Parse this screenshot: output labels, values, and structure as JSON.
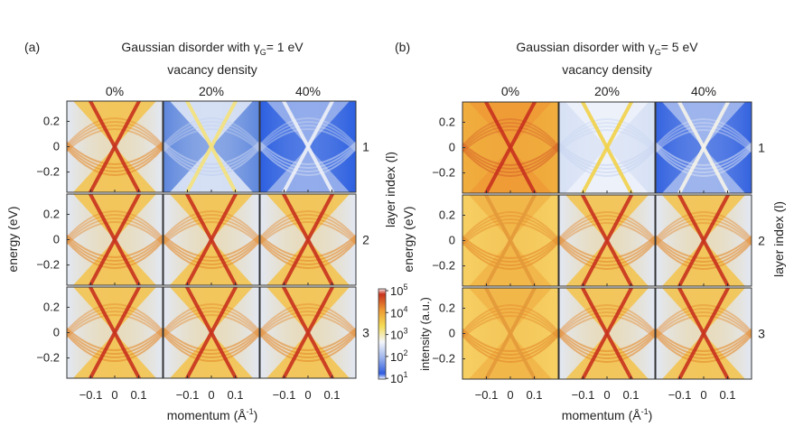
{
  "chart_data": [
    {
      "type": "heatmap",
      "panel_label": "(a)",
      "title_prefix": "Gaussian disorder with γ",
      "title_sub": "G",
      "title_suffix": "= 1 eV",
      "column_header": "vacancy density",
      "columns": [
        "0%",
        "20%",
        "40%"
      ],
      "rows": [
        "1",
        "2",
        "3"
      ],
      "row_axis_label": "layer index (l)",
      "xlabel": "momentum (Å",
      "xlabel_sup": "-1",
      "xlabel_end": ")",
      "ylabel": "energy (eV)",
      "xticks": [
        -0.1,
        0,
        0.1
      ],
      "xtick_labels": [
        "−0.1",
        "0",
        "0.1"
      ],
      "yticks": [
        0.2,
        0,
        -0.2
      ],
      "ytick_labels": [
        "0.2",
        "0",
        "−0.2"
      ],
      "xlim": [
        -0.2,
        0.2
      ],
      "ylim": [
        -0.36,
        0.36
      ],
      "panels": [
        [
          "warm",
          "pale-blue",
          "blue"
        ],
        [
          "warm",
          "warm",
          "warm"
        ],
        [
          "warm",
          "warm",
          "warm"
        ]
      ]
    },
    {
      "type": "heatmap",
      "panel_label": "(b)",
      "title_prefix": "Gaussian disorder with γ",
      "title_sub": "G",
      "title_suffix": "= 5 eV",
      "column_header": "vacancy density",
      "columns": [
        "0%",
        "20%",
        "40%"
      ],
      "rows": [
        "1",
        "2",
        "3"
      ],
      "row_axis_label": "layer index (l)",
      "xlabel": "momentum (Å",
      "xlabel_sup": "-1",
      "xlabel_end": ")",
      "ylabel": "energy (eV)",
      "xticks": [
        -0.1,
        0,
        0.1
      ],
      "xtick_labels": [
        "−0.1",
        "0",
        "0.1"
      ],
      "yticks": [
        0.2,
        0,
        -0.2
      ],
      "ytick_labels": [
        "0.2",
        "0",
        "−0.2"
      ],
      "xlim": [
        -0.2,
        0.2
      ],
      "ylim": [
        -0.36,
        0.36
      ],
      "panels": [
        [
          "orange",
          "pale-blue-yellow",
          "blue-white"
        ],
        [
          "diffuse",
          "warm",
          "warm"
        ],
        [
          "diffuse",
          "warm",
          "warm"
        ]
      ]
    }
  ],
  "colorbar": {
    "label": "intensity (a.u.)",
    "scale": "log",
    "tick_labels": [
      "10",
      "10",
      "10",
      "10",
      "10"
    ],
    "tick_exponents": [
      "5",
      "4",
      "3",
      "2",
      "1"
    ],
    "range": [
      10,
      100000
    ],
    "colors": [
      "#ffffff",
      "#2f5de0",
      "#9db4ec",
      "#f4f6fb",
      "#f4dc54",
      "#ee9a34",
      "#c8321e",
      "#f8e8e8"
    ]
  },
  "palettes": {
    "warm": {
      "side": "#e2e8f4",
      "cone": "#f3c24a",
      "line": "#c8321e",
      "arc": "#e58a2c"
    },
    "pale-blue": {
      "side": "#5d86dc",
      "cone": "#e3eaf7",
      "line": "#f5e27c",
      "arc": "#c3d1f0"
    },
    "blue": {
      "side": "#2c5fe0",
      "cone": "#9fb5ec",
      "line": "#eef1f8",
      "arc": "#c8d5f2"
    },
    "orange": {
      "side": "#f0ae3e",
      "cone": "#ee9a36",
      "line": "#c8321e",
      "arc": "#d8662a"
    },
    "diffuse": {
      "side": "#f6d064",
      "cone": "#f1b446",
      "line": "#e49a3a",
      "arc": "#e48a2c"
    },
    "pale-blue-yellow": {
      "side": "#d7e1f5",
      "cone": "#eef2fa",
      "line": "#f2d24a",
      "arc": "#c9d6f1"
    },
    "blue-white": {
      "side": "#3463e0",
      "cone": "#a9bdee",
      "line": "#f6f4ea",
      "arc": "#d2dcf3"
    }
  }
}
